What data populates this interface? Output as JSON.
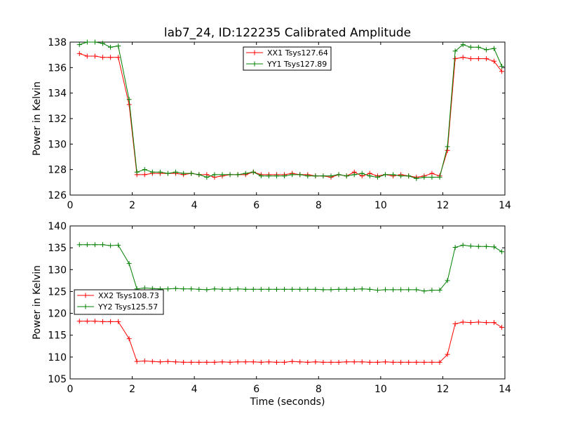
{
  "figure": {
    "title": "lab7_24, ID:122235 Calibrated Amplitude"
  },
  "colors": {
    "xx": "#ff0000",
    "yy": "#008000",
    "axes": "#000000",
    "background": "#ffffff"
  },
  "chart_data": [
    {
      "type": "line",
      "title": "lab7_24, ID:122235 Calibrated Amplitude",
      "xlabel": "",
      "ylabel": "Power in Kelvin",
      "xlim": [
        0,
        14
      ],
      "ylim": [
        126,
        138
      ],
      "xticks": [
        "0",
        "2",
        "4",
        "6",
        "8",
        "10",
        "12",
        "14"
      ],
      "yticks": [
        "126",
        "128",
        "130",
        "132",
        "134",
        "136",
        "138"
      ],
      "grid": false,
      "legend_position": "upper-center",
      "marker": "+",
      "x": [
        0.3,
        0.55,
        0.8,
        1.05,
        1.3,
        1.55,
        1.9,
        2.15,
        2.4,
        2.65,
        2.9,
        3.15,
        3.4,
        3.65,
        3.9,
        4.15,
        4.4,
        4.65,
        4.9,
        5.15,
        5.4,
        5.65,
        5.9,
        6.15,
        6.4,
        6.65,
        6.9,
        7.15,
        7.4,
        7.65,
        7.9,
        8.15,
        8.4,
        8.65,
        8.9,
        9.15,
        9.4,
        9.65,
        9.9,
        10.15,
        10.4,
        10.65,
        10.9,
        11.15,
        11.4,
        11.65,
        11.9,
        12.15,
        12.4,
        12.65,
        12.9,
        13.15,
        13.4,
        13.65,
        13.9
      ],
      "series": [
        {
          "name": "XX1 Tsys127.64",
          "color": "#ff0000",
          "values": [
            137.1,
            136.9,
            136.9,
            136.8,
            136.8,
            136.8,
            133.1,
            127.6,
            127.6,
            127.7,
            127.7,
            127.7,
            127.7,
            127.6,
            127.7,
            127.6,
            127.6,
            127.4,
            127.5,
            127.6,
            127.6,
            127.6,
            127.8,
            127.6,
            127.6,
            127.6,
            127.6,
            127.7,
            127.6,
            127.6,
            127.5,
            127.5,
            127.4,
            127.6,
            127.5,
            127.8,
            127.5,
            127.7,
            127.5,
            127.6,
            127.5,
            127.6,
            127.5,
            127.4,
            127.5,
            127.7,
            127.5,
            129.5,
            136.7,
            136.8,
            136.7,
            136.7,
            136.7,
            136.5,
            135.7
          ]
        },
        {
          "name": "YY1 Tsys127.89",
          "color": "#008000",
          "values": [
            137.8,
            138.0,
            138.0,
            137.9,
            137.6,
            137.7,
            133.5,
            127.8,
            128.0,
            127.8,
            127.8,
            127.7,
            127.8,
            127.7,
            127.7,
            127.6,
            127.4,
            127.6,
            127.6,
            127.6,
            127.6,
            127.7,
            127.8,
            127.5,
            127.5,
            127.5,
            127.5,
            127.6,
            127.6,
            127.5,
            127.5,
            127.5,
            127.5,
            127.6,
            127.5,
            127.6,
            127.7,
            127.5,
            127.4,
            127.6,
            127.6,
            127.5,
            127.5,
            127.3,
            127.4,
            127.4,
            127.4,
            129.8,
            137.3,
            137.8,
            137.6,
            137.6,
            137.4,
            137.5,
            136.1
          ]
        }
      ]
    },
    {
      "type": "line",
      "title": "",
      "xlabel": "Time (seconds)",
      "ylabel": "Power in Kelvin",
      "xlim": [
        0,
        14
      ],
      "ylim": [
        105,
        140
      ],
      "xticks": [
        "0",
        "2",
        "4",
        "6",
        "8",
        "10",
        "12",
        "14"
      ],
      "yticks": [
        "105",
        "110",
        "115",
        "120",
        "125",
        "130",
        "135",
        "140"
      ],
      "grid": false,
      "legend_position": "center-left",
      "marker": "+",
      "x": [
        0.3,
        0.55,
        0.8,
        1.05,
        1.3,
        1.55,
        1.9,
        2.15,
        2.4,
        2.65,
        2.9,
        3.15,
        3.4,
        3.65,
        3.9,
        4.15,
        4.4,
        4.65,
        4.9,
        5.15,
        5.4,
        5.65,
        5.9,
        6.15,
        6.4,
        6.65,
        6.9,
        7.15,
        7.4,
        7.65,
        7.9,
        8.15,
        8.4,
        8.65,
        8.9,
        9.15,
        9.4,
        9.65,
        9.9,
        10.15,
        10.4,
        10.65,
        10.9,
        11.15,
        11.4,
        11.65,
        11.9,
        12.15,
        12.4,
        12.65,
        12.9,
        13.15,
        13.4,
        13.65,
        13.9
      ],
      "series": [
        {
          "name": "XX2 Tsys108.73",
          "color": "#ff0000",
          "values": [
            118.2,
            118.2,
            118.2,
            118.1,
            118.1,
            118.1,
            114.2,
            109.0,
            109.1,
            109.0,
            108.9,
            109.0,
            108.9,
            108.8,
            108.8,
            108.8,
            108.8,
            108.8,
            108.9,
            108.8,
            108.9,
            108.9,
            108.9,
            108.8,
            108.9,
            108.8,
            108.8,
            109.0,
            108.9,
            108.8,
            108.9,
            108.8,
            108.8,
            108.8,
            108.9,
            108.9,
            108.9,
            108.8,
            108.8,
            108.9,
            108.8,
            108.8,
            108.8,
            108.8,
            108.8,
            108.8,
            108.8,
            110.6,
            117.6,
            118.0,
            117.9,
            118.0,
            117.9,
            117.9,
            116.8
          ]
        },
        {
          "name": "YY2 Tsys125.57",
          "color": "#008000",
          "values": [
            135.7,
            135.7,
            135.7,
            135.7,
            135.5,
            135.6,
            131.4,
            125.6,
            125.8,
            125.7,
            125.6,
            125.6,
            125.7,
            125.6,
            125.6,
            125.5,
            125.4,
            125.6,
            125.5,
            125.5,
            125.6,
            125.5,
            125.5,
            125.5,
            125.5,
            125.5,
            125.5,
            125.5,
            125.5,
            125.5,
            125.5,
            125.4,
            125.4,
            125.5,
            125.5,
            125.5,
            125.6,
            125.5,
            125.3,
            125.4,
            125.4,
            125.4,
            125.4,
            125.4,
            125.1,
            125.3,
            125.3,
            127.5,
            135.1,
            135.6,
            135.4,
            135.3,
            135.3,
            135.2,
            134.1
          ]
        }
      ]
    }
  ]
}
